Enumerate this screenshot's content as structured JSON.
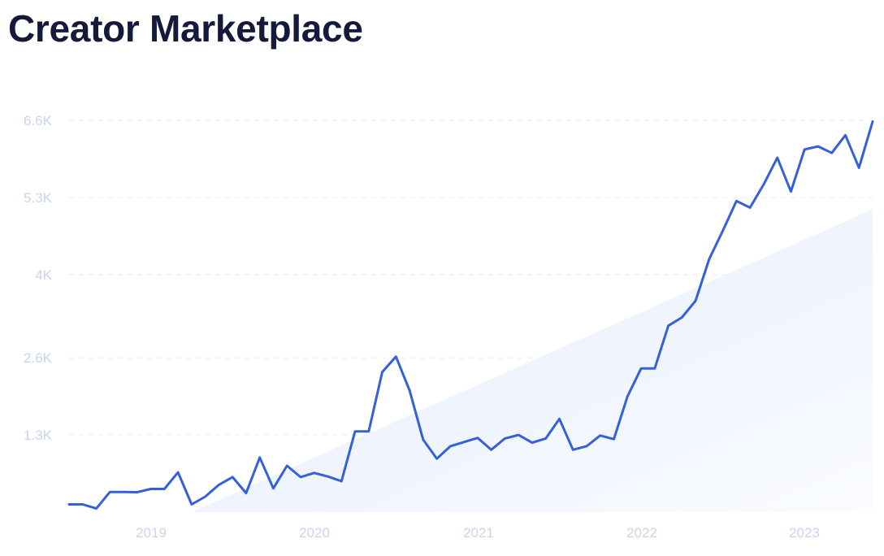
{
  "chart_data": {
    "type": "line",
    "title": "Creator Marketplace",
    "xlabel": "",
    "ylabel": "",
    "x_tick_labels": [
      "2019",
      "2020",
      "2021",
      "2022",
      "2023"
    ],
    "y_tick_labels": [
      "1.3K",
      "2.6K",
      "4K",
      "5.3K",
      "6.6K"
    ],
    "y_tick_values": [
      1300,
      2600,
      4000,
      5300,
      6600
    ],
    "ylim": [
      0,
      6600
    ],
    "grid": true,
    "legend": "none",
    "series": [
      {
        "values": [
          130,
          130,
          60,
          340,
          340,
          335,
          390,
          390,
          670,
          130,
          260,
          460,
          590,
          320,
          920,
          400,
          780,
          590,
          660,
          600,
          520,
          1360,
          1360,
          2360,
          2620,
          2050,
          1220,
          900,
          1110,
          1180,
          1250,
          1050,
          1240,
          1300,
          1170,
          1240,
          1570,
          1050,
          1110,
          1290,
          1230,
          1950,
          2420,
          2420,
          3140,
          3280,
          3560,
          4260,
          4740,
          5240,
          5130,
          5520,
          5970,
          5400,
          6110,
          6160,
          6050,
          6350,
          5800,
          6580
        ]
      },
      {
        "values": [
          0,
          5100
        ]
      }
    ],
    "colors": {
      "line": "#3460dc",
      "area": "#e8f0fc",
      "grid": "#e4e8f2",
      "tick_text": "#c9d4ee",
      "title": "#161a3a"
    }
  },
  "header": {
    "title": "Creator Marketplace"
  }
}
